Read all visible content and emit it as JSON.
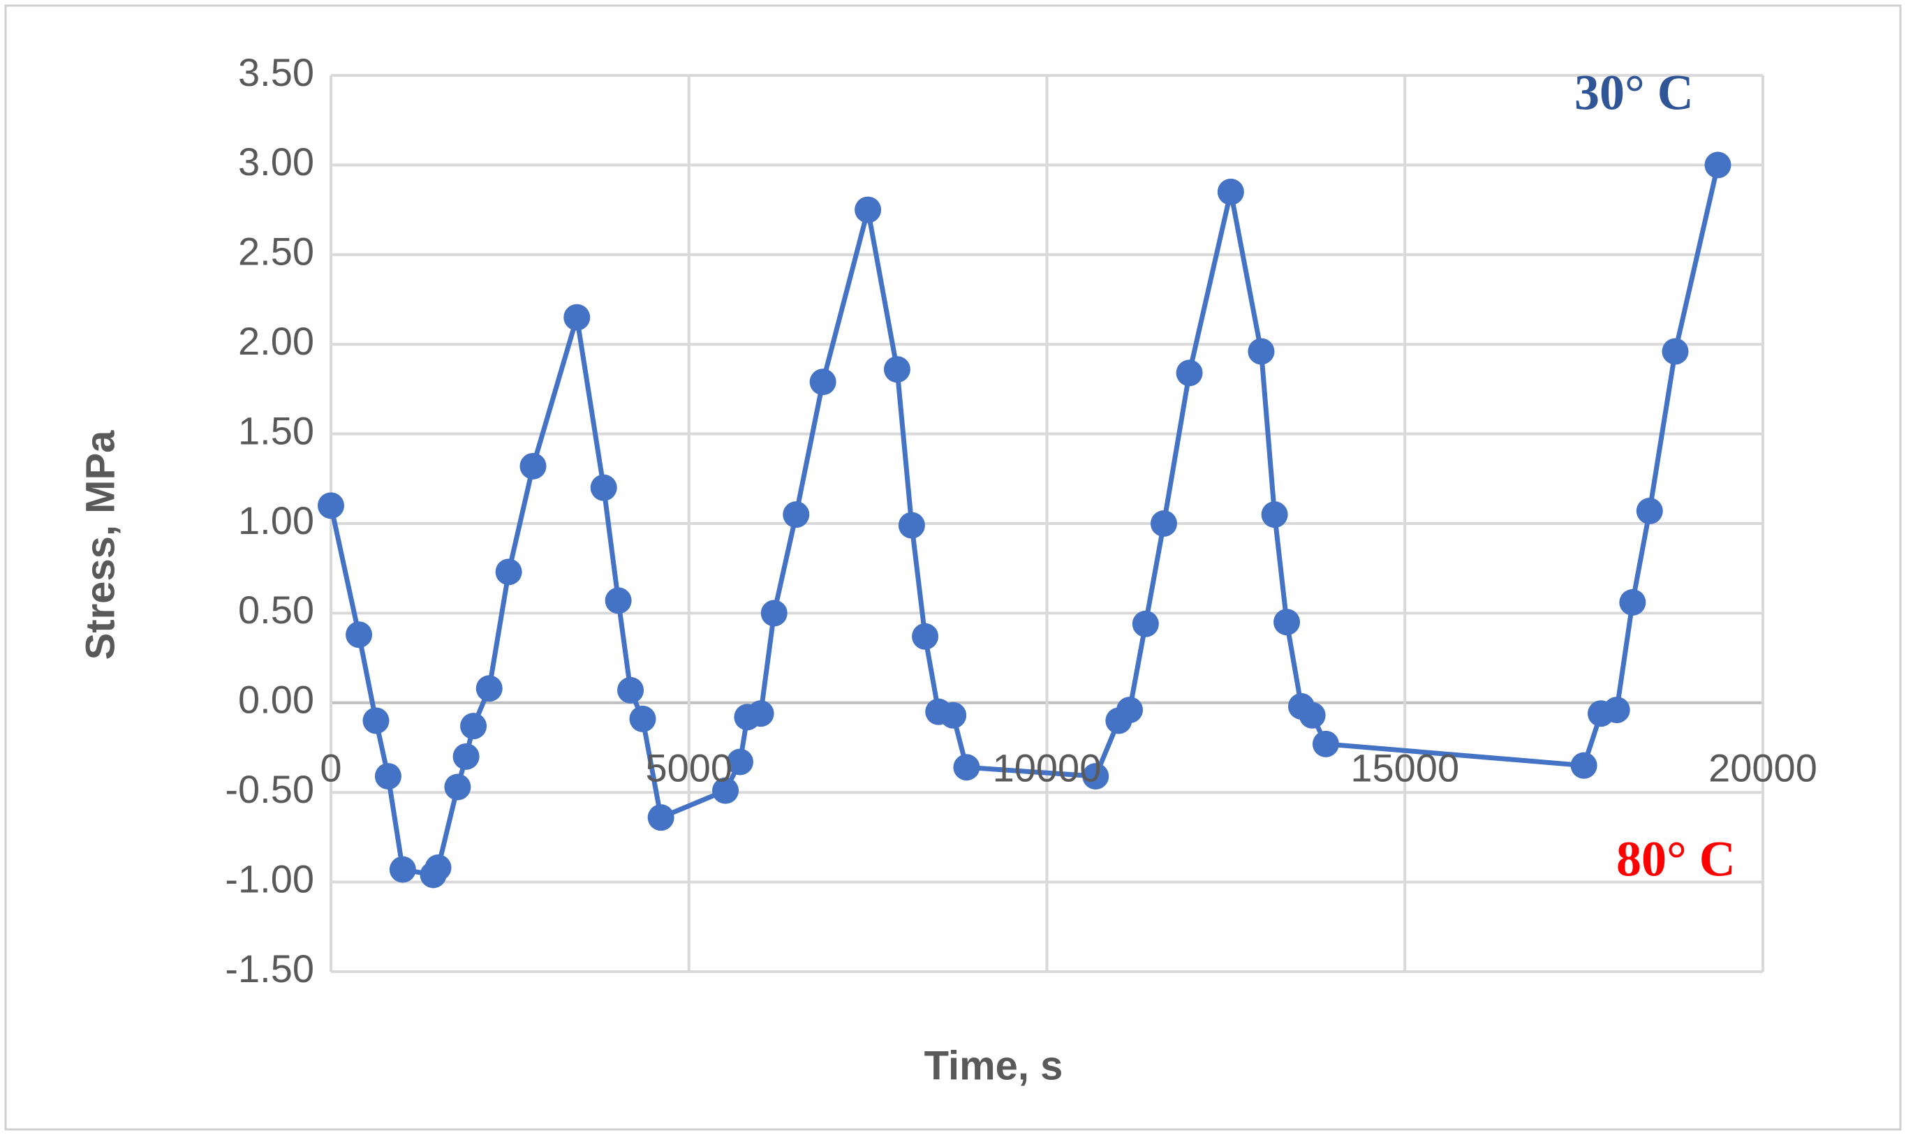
{
  "chart_data": {
    "type": "line",
    "x_label": "Time, s",
    "y_label": "Stress, MPa",
    "series": [
      {
        "color": "#4472c4",
        "x": [
          0,
          391,
          629,
          799,
          1003,
          1429,
          1497,
          1769,
          1888,
          1990,
          2211,
          2483,
          2823,
          3435,
          3810,
          4014,
          4184,
          4354,
          4609,
          5510,
          5714,
          5816,
          6003,
          6190,
          6497,
          6871,
          7500,
          7908,
          8112,
          8299,
          8486,
          8690,
          8878,
          10680,
          11003,
          11156,
          11378,
          11633,
          11990,
          12568,
          12993,
          13180,
          13350,
          13554,
          13707,
          13895,
          17500,
          17738,
          17959,
          18180,
          18418,
          18776,
          19371
        ],
        "values": [
          1.1,
          0.38,
          -0.1,
          -0.41,
          -0.93,
          -0.96,
          -0.92,
          -0.47,
          -0.3,
          -0.13,
          0.08,
          0.73,
          1.32,
          2.15,
          1.2,
          0.57,
          0.07,
          -0.09,
          -0.64,
          -0.49,
          -0.33,
          -0.08,
          -0.06,
          0.5,
          1.05,
          1.79,
          2.75,
          1.86,
          0.99,
          0.37,
          -0.05,
          -0.07,
          -0.36,
          -0.41,
          -0.1,
          -0.04,
          0.44,
          1.0,
          1.84,
          2.85,
          1.96,
          1.05,
          0.45,
          -0.02,
          -0.07,
          -0.23,
          -0.35,
          -0.06,
          -0.04,
          0.56,
          1.07,
          1.96,
          3.0
        ]
      }
    ],
    "xlim": [
      0,
      20000
    ],
    "xticks": [
      0,
      5000,
      10000,
      15000,
      20000
    ],
    "ylim": [
      -1.5,
      3.5
    ],
    "yticks": [
      {
        "value": -1.5,
        "label": "-1.50"
      },
      {
        "value": -1,
        "label": "-1.00"
      },
      {
        "value": -0.5,
        "label": "-0.50"
      },
      {
        "value": 0,
        "label": "0.00"
      },
      {
        "value": 0.5,
        "label": "0.50"
      },
      {
        "value": 1,
        "label": "1.00"
      },
      {
        "value": 1.5,
        "label": "1.50"
      },
      {
        "value": 2,
        "label": "2.00"
      },
      {
        "value": 2.5,
        "label": "2.50"
      },
      {
        "value": 3,
        "label": "3.00"
      },
      {
        "value": 3.5,
        "label": "3.50"
      }
    ],
    "grid": true,
    "annotations": [
      {
        "text": "30°  C",
        "color": "#2f5597"
      },
      {
        "text": "80°  C",
        "color": "#ff0000"
      }
    ]
  }
}
